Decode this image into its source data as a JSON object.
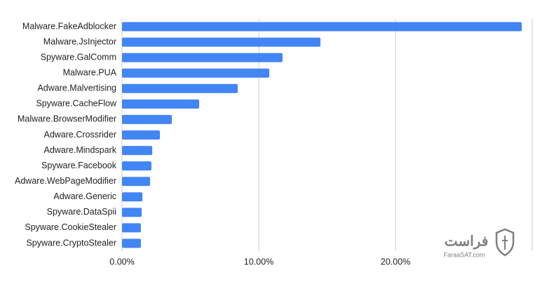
{
  "chart_data": {
    "type": "barh",
    "color": "#4285f4",
    "grid": true,
    "categories": [
      "Malware.FakeAdblocker",
      "Malware.JsInjector",
      "Spyware.GalComm",
      "Malware.PUA",
      "Adware.Malvertising",
      "Spyware.CacheFlow",
      "Malware.BrowserModifier",
      "Adware.Crossrider",
      "Adware.Mindspark",
      "Spyware.Facebook",
      "Adware.WebPageModifier",
      "Adware.Generic",
      "Spyware.DataSpii",
      "Spyware.CookieStealer",
      "Spyware.CryptoStealer"
    ],
    "values": [
      29.23,
      14.51,
      11.74,
      10.77,
      8.46,
      5.64,
      3.64,
      2.77,
      2.21,
      2.15,
      2.05,
      1.49,
      1.44,
      1.38,
      1.38
    ],
    "xlim": [
      0,
      30
    ],
    "xticks": [
      {
        "value": 0,
        "label": "0.00%"
      },
      {
        "value": 10,
        "label": "10.00%"
      },
      {
        "value": 20,
        "label": "20.00%"
      }
    ]
  },
  "watermark": {
    "name": "فراست",
    "url": "FaraaSAT.com"
  }
}
